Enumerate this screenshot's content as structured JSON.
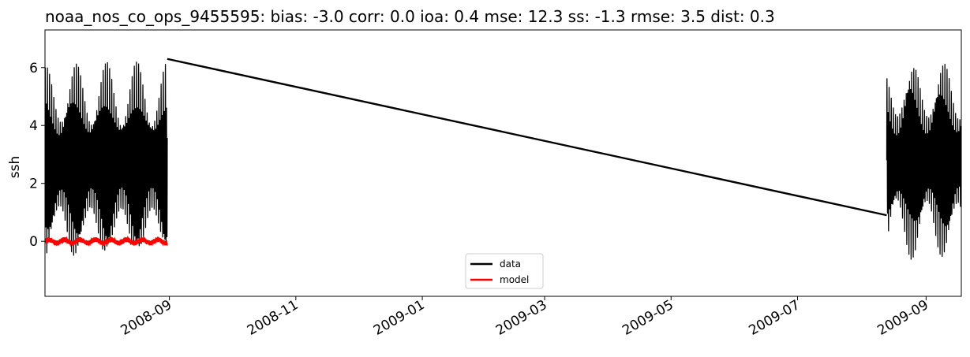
{
  "chart_data": {
    "type": "line",
    "title": "noaa_nos_co_ops_9455595: bias: -3.0  corr: 0.0  ioa: 0.4  mse: 12.3  ss: -1.3  rmse: 3.5  dist: 0.3",
    "xlabel": "",
    "ylabel": "ssh",
    "xlim": [
      "2008-07-03",
      "2009-09-18"
    ],
    "ylim": [
      -1.9,
      7.3
    ],
    "x_ticks": [
      "2008-09",
      "2008-11",
      "2009-01",
      "2009-03",
      "2009-05",
      "2009-07",
      "2009-09"
    ],
    "y_ticks": [
      0,
      2,
      4,
      6
    ],
    "grid": false,
    "legend": {
      "placement": "lower center",
      "entries": [
        "data",
        "model"
      ]
    },
    "series": [
      {
        "name": "data",
        "color": "#000000",
        "segments": [
          {
            "start": "2008-07-03",
            "end": "2008-08-31",
            "mean": 2.7,
            "amplitude": 3.2,
            "min": -1.4,
            "max": 6.9
          },
          {
            "start": "2009-08-13",
            "end": "2009-09-18",
            "mean": 2.8,
            "amplitude": 3.2,
            "min": -1.5,
            "max": 6.8
          }
        ],
        "connector": {
          "x": [
            "2008-08-31",
            "2009-08-13"
          ],
          "y": [
            6.3,
            0.9
          ]
        }
      },
      {
        "name": "model",
        "color": "#ff0000",
        "segments": [
          {
            "start": "2008-07-03",
            "end": "2008-08-31",
            "mean": 0.0,
            "amplitude": 0.12
          }
        ]
      }
    ]
  }
}
